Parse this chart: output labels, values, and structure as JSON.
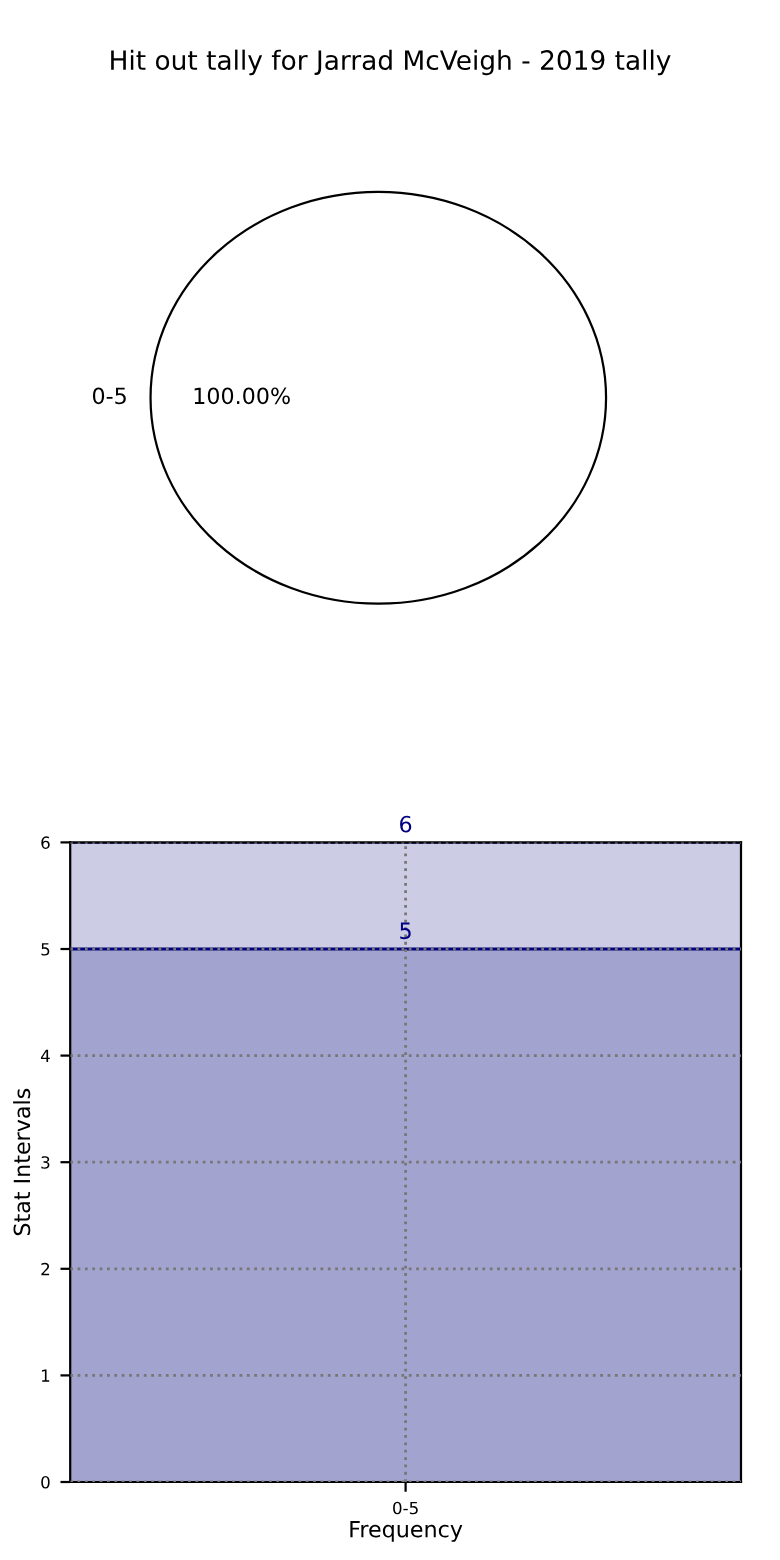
{
  "chart_data": [
    {
      "type": "pie",
      "title": "Hit out tally for Jarrad McVeigh - 2019 tally",
      "categories": [
        "0-5"
      ],
      "values": [
        100
      ],
      "colors": [
        "#ffffff"
      ],
      "value_labels": [
        "100.00%"
      ]
    },
    {
      "type": "bar",
      "categories": [
        "0-5"
      ],
      "xlabel": "Frequency",
      "ylabel": "Stat Intervals",
      "ylim": [
        0,
        6
      ],
      "yticks": [
        0,
        1,
        2,
        3,
        4,
        5,
        6
      ],
      "grid": true,
      "stacked": true,
      "totals": [
        "6"
      ],
      "series": [
        {
          "color": "#a3a3d0",
          "values": [
            5
          ],
          "value_labels": [
            "5"
          ]
        },
        {
          "color": "#ccccE4",
          "values": [
            1
          ],
          "value_labels": [
            null
          ]
        }
      ]
    }
  ]
}
